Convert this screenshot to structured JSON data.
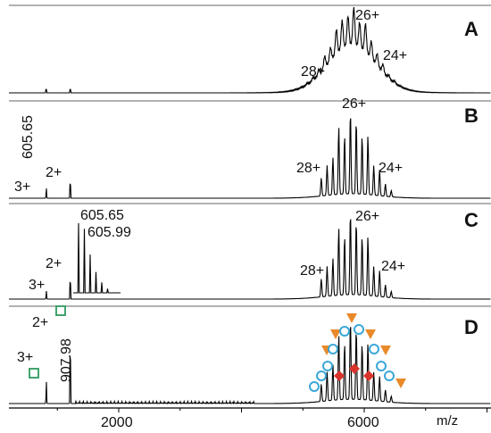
{
  "chart_data": {
    "type": "line",
    "x_axis": {
      "label": "m/z",
      "range": [
        0,
        8800
      ],
      "ticks": [
        {
          "value": 2000,
          "label": "2000"
        },
        {
          "value": 6000,
          "label": "6000"
        }
      ]
    },
    "panels": [
      {
        "id": "A",
        "envelope": {
          "center": 5800,
          "min_mz": 4500,
          "max_mz": 7400,
          "smooth": true
        },
        "labels": [
          {
            "text": "26+",
            "mz": 5800,
            "role": "charge-state"
          },
          {
            "text": "28+",
            "mz": 5450,
            "role": "charge-state"
          },
          {
            "text": "24+",
            "mz": 6300,
            "role": "charge-state"
          }
        ]
      },
      {
        "id": "B",
        "envelope": {
          "center": 5800,
          "min_mz": 5300,
          "max_mz": 6500,
          "smooth": false
        },
        "low_mz_peaks": [
          {
            "mz": 820,
            "rel": 0.12
          },
          {
            "mz": 1210,
            "rel": 0.28
          }
        ],
        "labels": [
          {
            "text": "605.65",
            "mz": 820,
            "role": "mz-value"
          },
          {
            "text": "3+",
            "mz": 820,
            "role": "charge-state"
          },
          {
            "text": "2+",
            "mz": 1210,
            "role": "charge-state"
          },
          {
            "text": "26+",
            "mz": 5800,
            "role": "charge-state"
          },
          {
            "text": "28+",
            "mz": 5450,
            "role": "charge-state"
          },
          {
            "text": "24+",
            "mz": 6250,
            "role": "charge-state"
          }
        ]
      },
      {
        "id": "C",
        "envelope": {
          "center": 5800,
          "min_mz": 5300,
          "max_mz": 6500,
          "smooth": false
        },
        "low_mz_peaks": [
          {
            "mz": 820,
            "rel": 0.1
          },
          {
            "mz": 1210,
            "rel": 0.33
          }
        ],
        "inset_isotope_peaks": [
          1.0,
          0.92,
          0.55,
          0.3,
          0.15,
          0.06
        ],
        "labels": [
          {
            "text": "605.65",
            "mz": 1800,
            "role": "mz-value"
          },
          {
            "text": "605.99",
            "mz": 1800,
            "role": "mz-value"
          },
          {
            "text": "3+",
            "mz": 820,
            "role": "charge-state"
          },
          {
            "text": "2+",
            "mz": 1210,
            "role": "charge-state"
          },
          {
            "text": "26+",
            "mz": 5800,
            "role": "charge-state"
          },
          {
            "text": "28+",
            "mz": 5450,
            "role": "charge-state"
          },
          {
            "text": "24+",
            "mz": 6250,
            "role": "charge-state"
          }
        ]
      },
      {
        "id": "D",
        "envelope": {
          "center": 5800,
          "min_mz": 5300,
          "max_mz": 6500,
          "smooth": false
        },
        "low_mz_peaks": [
          {
            "mz": 820,
            "rel": 0.28
          },
          {
            "mz": 1210,
            "rel": 0.96
          }
        ],
        "labels": [
          {
            "text": "2+",
            "mz": 1210,
            "role": "charge-state"
          },
          {
            "text": "3+",
            "mz": 820,
            "role": "charge-state"
          },
          {
            "text": "907.98",
            "mz": 1350,
            "role": "mz-value"
          }
        ],
        "markers": {
          "square_color": "#2e9a5e",
          "triangle_color": "#e8892a",
          "circle_color": "#3aa7d8",
          "diamond_color": "#d9342b"
        }
      }
    ]
  }
}
